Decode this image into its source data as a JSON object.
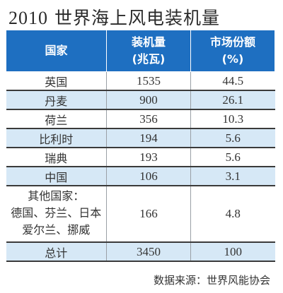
{
  "title": {
    "year": "2010",
    "text": " 世界海上风电装机量"
  },
  "table": {
    "headers": {
      "country": "国家",
      "capacity": [
        "装机量",
        "(兆瓦)"
      ],
      "share": [
        "市场份额",
        "(%)"
      ]
    },
    "rows": [
      {
        "country": [
          "英国"
        ],
        "capacity": "1535",
        "share": "44.5"
      },
      {
        "country": [
          "丹麦"
        ],
        "capacity": "900",
        "share": "26.1"
      },
      {
        "country": [
          "荷兰"
        ],
        "capacity": "356",
        "share": "10.3"
      },
      {
        "country": [
          "比利时"
        ],
        "capacity": "194",
        "share": "5.6"
      },
      {
        "country": [
          "瑞典"
        ],
        "capacity": "193",
        "share": "5.6"
      },
      {
        "country": [
          "中国"
        ],
        "capacity": "106",
        "share": "3.1"
      },
      {
        "country": [
          "其他国家：",
          "德国、芬兰、日本",
          "爱尔兰、挪威"
        ],
        "capacity": "166",
        "share": "4.8"
      },
      {
        "country": [
          "总计"
        ],
        "capacity": "3450",
        "share": "100"
      }
    ]
  },
  "source": "数据来源：世界风能协会"
}
